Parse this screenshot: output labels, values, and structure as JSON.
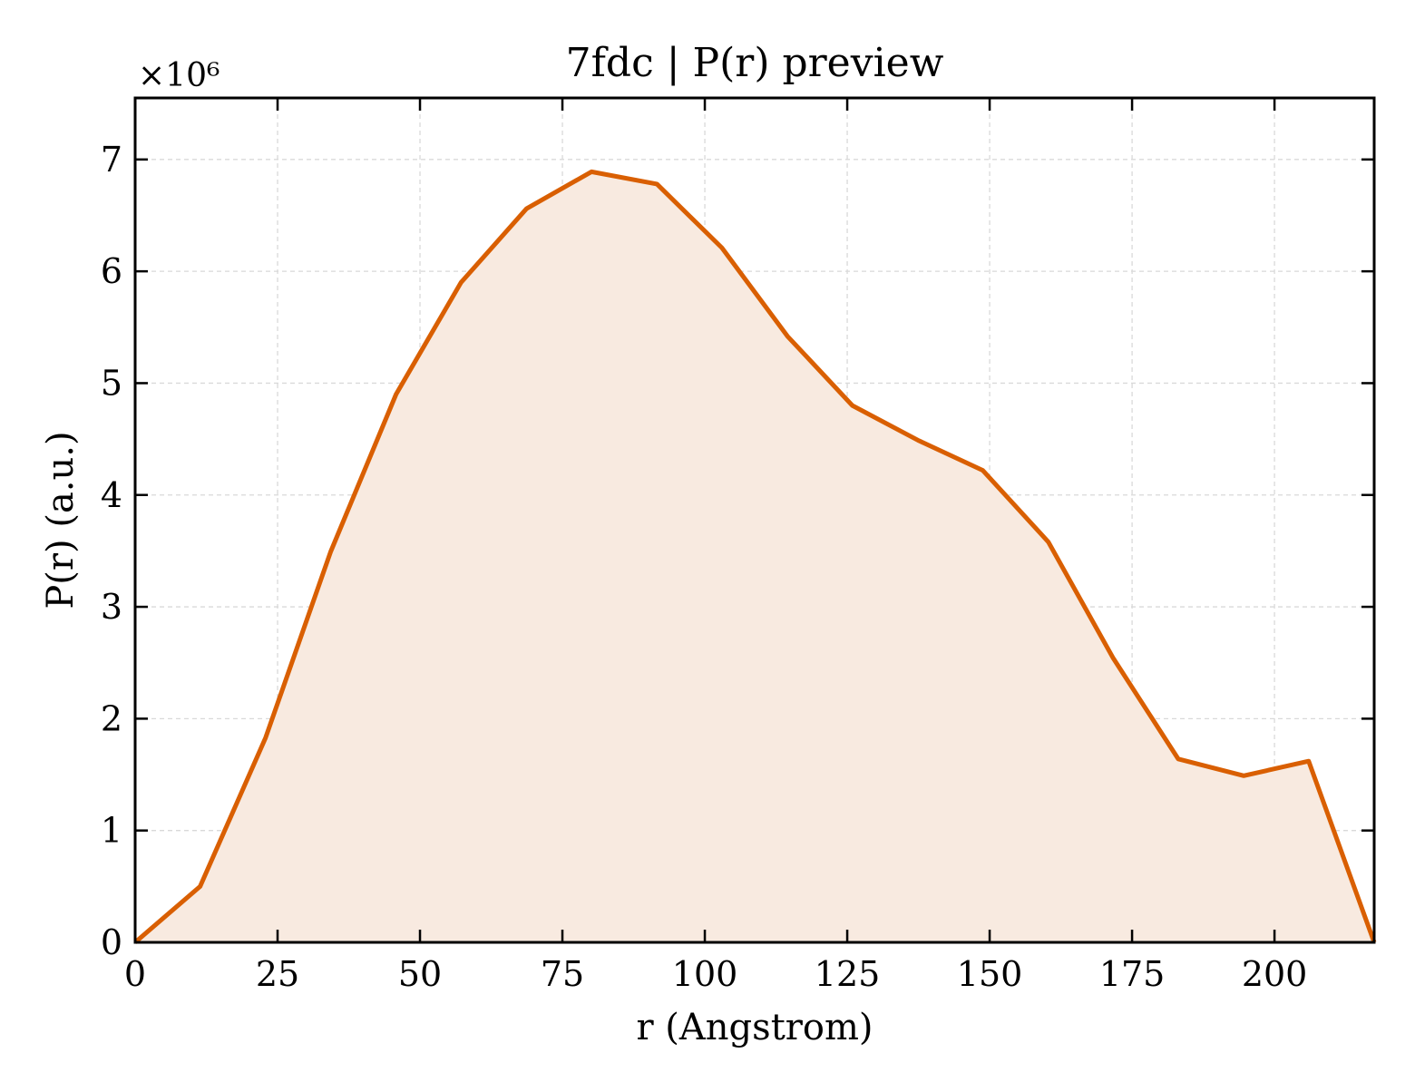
{
  "chart_data": {
    "type": "area",
    "title": "7fdc | P(r) preview",
    "xlabel": "r (Angstrom)",
    "ylabel": "P(r) (a.u.)",
    "y_multiplier_label": "×10⁶",
    "y_scale": 1000000,
    "xlim": [
      0,
      217.5
    ],
    "ylim": [
      0,
      7.55
    ],
    "xticks": [
      0,
      25,
      50,
      75,
      100,
      125,
      150,
      175,
      200
    ],
    "yticks": [
      0,
      1,
      2,
      3,
      4,
      5,
      6,
      7
    ],
    "grid": true,
    "legend": "none",
    "colors": {
      "line": "#d95f02",
      "fill": "#f8eae0",
      "grid": "#d9d9d9",
      "axis": "#000000"
    },
    "series": [
      {
        "x": [
          0,
          11.4,
          22.9,
          34.3,
          45.8,
          57.2,
          68.7,
          80.1,
          91.6,
          103.0,
          114.5,
          125.9,
          137.4,
          148.8,
          160.3,
          171.7,
          183.1,
          194.6,
          206.0,
          217.5
        ],
        "y": [
          0.0,
          0.5,
          1.83,
          3.49,
          4.9,
          5.9,
          6.56,
          6.89,
          6.78,
          6.21,
          5.42,
          4.8,
          4.49,
          4.22,
          3.58,
          2.54,
          1.64,
          1.49,
          1.62,
          0.0
        ]
      }
    ]
  }
}
